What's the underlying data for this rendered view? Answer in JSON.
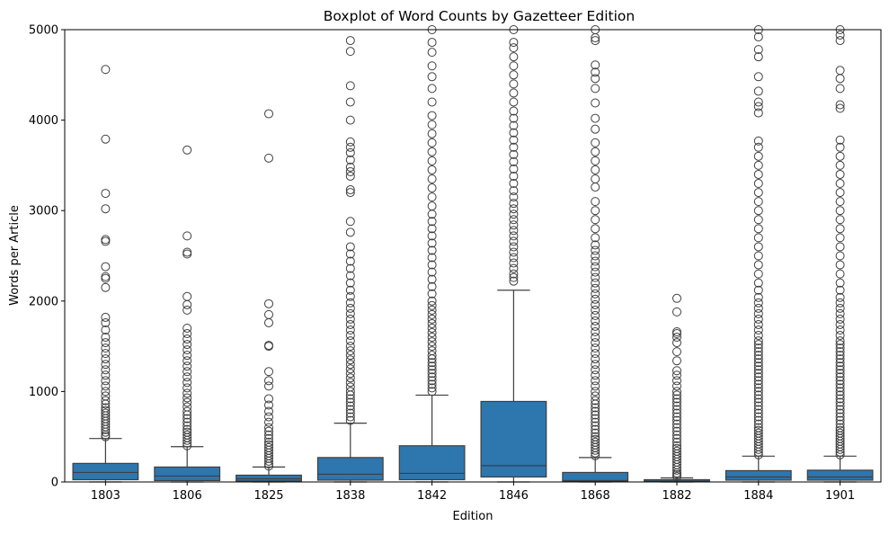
{
  "chart_data": {
    "type": "boxplot",
    "title": "Boxplot of Word Counts by Gazetteer Edition",
    "xlabel": "Edition",
    "ylabel": "Words per Article",
    "ylim": [
      0,
      5000
    ],
    "yticks": [
      0,
      1000,
      2000,
      3000,
      4000,
      5000
    ],
    "grid": false,
    "box_color": "#2e76ae",
    "line_color": "#3f3f3f",
    "categories": [
      "1803",
      "1806",
      "1825",
      "1838",
      "1842",
      "1846",
      "1868",
      "1882",
      "1884",
      "1901"
    ],
    "boxes": [
      {
        "category": "1803",
        "whisker_low": 0,
        "q1": 25,
        "median": 105,
        "q3": 205,
        "whisker_high": 480,
        "outliers": [
          500,
          520,
          550,
          580,
          610,
          640,
          670,
          700,
          730,
          760,
          790,
          820,
          860,
          900,
          950,
          1000,
          1060,
          1120,
          1180,
          1240,
          1300,
          1360,
          1420,
          1480,
          1540,
          1600,
          1680,
          1760,
          1820,
          2150,
          2250,
          2270,
          2380,
          2660,
          2680,
          3020,
          3190,
          3790,
          4560
        ]
      },
      {
        "category": "1806",
        "whisker_low": 0,
        "q1": 15,
        "median": 65,
        "q3": 165,
        "whisker_high": 390,
        "outliers": [
          400,
          430,
          460,
          490,
          520,
          550,
          580,
          620,
          660,
          700,
          740,
          780,
          830,
          880,
          930,
          980,
          1040,
          1100,
          1160,
          1220,
          1280,
          1340,
          1400,
          1460,
          1520,
          1580,
          1640,
          1700,
          1900,
          1960,
          2050,
          2520,
          2540,
          2720,
          3670
        ]
      },
      {
        "category": "1825",
        "whisker_low": 0,
        "q1": 10,
        "median": 35,
        "q3": 75,
        "whisker_high": 165,
        "outliers": [
          175,
          200,
          230,
          260,
          290,
          320,
          350,
          380,
          410,
          440,
          480,
          520,
          560,
          600,
          660,
          720,
          780,
          850,
          920,
          1060,
          1120,
          1220,
          1500,
          1510,
          1760,
          1850,
          1970,
          3580,
          4070
        ]
      },
      {
        "category": "1838",
        "whisker_low": 0,
        "q1": 20,
        "median": 85,
        "q3": 270,
        "whisker_high": 650,
        "outliers": [
          680,
          720,
          760,
          800,
          840,
          880,
          920,
          960,
          1000,
          1050,
          1100,
          1150,
          1200,
          1250,
          1300,
          1350,
          1400,
          1450,
          1500,
          1560,
          1620,
          1680,
          1740,
          1800,
          1860,
          1920,
          1980,
          2050,
          2120,
          2200,
          2280,
          2360,
          2440,
          2520,
          2600,
          2760,
          2880,
          3200,
          3230,
          3380,
          3430,
          3480,
          3560,
          3640,
          3700,
          3760,
          4000,
          4200,
          4380,
          4760,
          4880
        ]
      },
      {
        "category": "1842",
        "whisker_low": 0,
        "q1": 25,
        "median": 95,
        "q3": 400,
        "whisker_high": 960,
        "outliers": [
          1000,
          1040,
          1080,
          1120,
          1160,
          1200,
          1240,
          1280,
          1320,
          1360,
          1400,
          1450,
          1500,
          1550,
          1600,
          1650,
          1700,
          1750,
          1800,
          1850,
          1900,
          1950,
          2000,
          2080,
          2160,
          2240,
          2320,
          2400,
          2480,
          2560,
          2640,
          2720,
          2800,
          2880,
          2960,
          3050,
          3150,
          3250,
          3350,
          3450,
          3550,
          3650,
          3750,
          3850,
          3950,
          4050,
          4200,
          4350,
          4480,
          4600,
          4750,
          4860,
          5000
        ]
      },
      {
        "category": "1846",
        "whisker_low": 0,
        "q1": 55,
        "median": 180,
        "q3": 890,
        "whisker_high": 2120,
        "outliers": [
          2220,
          2260,
          2300,
          2360,
          2420,
          2480,
          2540,
          2600,
          2660,
          2720,
          2780,
          2840,
          2900,
          2960,
          3020,
          3080,
          3150,
          3220,
          3300,
          3380,
          3460,
          3540,
          3620,
          3700,
          3780,
          3860,
          3940,
          4020,
          4100,
          4200,
          4300,
          4400,
          4500,
          4600,
          4700,
          4800,
          4860,
          5000
        ]
      },
      {
        "category": "1868",
        "whisker_low": 0,
        "q1": 5,
        "median": 15,
        "q3": 105,
        "whisker_high": 270,
        "outliers": [
          290,
          320,
          350,
          380,
          410,
          440,
          470,
          500,
          540,
          580,
          620,
          660,
          700,
          740,
          780,
          820,
          860,
          900,
          950,
          1000,
          1060,
          1120,
          1180,
          1240,
          1300,
          1360,
          1420,
          1480,
          1540,
          1600,
          1660,
          1720,
          1780,
          1840,
          1900,
          1960,
          2020,
          2080,
          2140,
          2200,
          2260,
          2320,
          2380,
          2440,
          2500,
          2560,
          2620,
          2700,
          2800,
          2900,
          3000,
          3100,
          3260,
          3350,
          3450,
          3550,
          3650,
          3750,
          3900,
          4020,
          4190,
          4350,
          4460,
          4530,
          4610,
          4880,
          4910,
          5000
        ]
      },
      {
        "category": "1882",
        "whisker_low": 0,
        "q1": 5,
        "median": 10,
        "q3": 25,
        "whisker_high": 45,
        "outliers": [
          60,
          80,
          100,
          130,
          160,
          190,
          220,
          250,
          280,
          310,
          340,
          370,
          400,
          440,
          480,
          520,
          560,
          600,
          640,
          680,
          720,
          760,
          800,
          840,
          880,
          920,
          960,
          1000,
          1060,
          1120,
          1180,
          1230,
          1340,
          1440,
          1540,
          1600,
          1640,
          1660,
          1880,
          2030
        ]
      },
      {
        "category": "1884",
        "whisker_low": 0,
        "q1": 20,
        "median": 55,
        "q3": 125,
        "whisker_high": 285,
        "outliers": [
          300,
          330,
          360,
          390,
          420,
          450,
          480,
          510,
          540,
          570,
          600,
          640,
          680,
          720,
          760,
          800,
          840,
          880,
          920,
          960,
          1000,
          1040,
          1080,
          1120,
          1160,
          1200,
          1240,
          1280,
          1320,
          1360,
          1400,
          1440,
          1480,
          1520,
          1560,
          1620,
          1680,
          1740,
          1800,
          1860,
          1920,
          1980,
          2040,
          2120,
          2200,
          2300,
          2400,
          2500,
          2600,
          2700,
          2800,
          2900,
          3000,
          3100,
          3200,
          3300,
          3400,
          3500,
          3600,
          3700,
          3770,
          4080,
          4150,
          4200,
          4320,
          4480,
          4700,
          4780,
          4920,
          5000
        ]
      },
      {
        "category": "1901",
        "whisker_low": 0,
        "q1": 20,
        "median": 55,
        "q3": 130,
        "whisker_high": 285,
        "outliers": [
          300,
          330,
          360,
          390,
          420,
          450,
          480,
          510,
          540,
          570,
          600,
          640,
          680,
          720,
          760,
          800,
          840,
          880,
          920,
          960,
          1000,
          1040,
          1080,
          1120,
          1160,
          1200,
          1240,
          1280,
          1320,
          1360,
          1400,
          1440,
          1480,
          1520,
          1560,
          1620,
          1680,
          1740,
          1800,
          1860,
          1920,
          1980,
          2040,
          2120,
          2200,
          2300,
          2400,
          2500,
          2600,
          2700,
          2800,
          2900,
          3000,
          3100,
          3200,
          3300,
          3400,
          3500,
          3600,
          3700,
          3780,
          4130,
          4170,
          4350,
          4460,
          4550,
          4880,
          4940,
          5000
        ]
      }
    ]
  }
}
